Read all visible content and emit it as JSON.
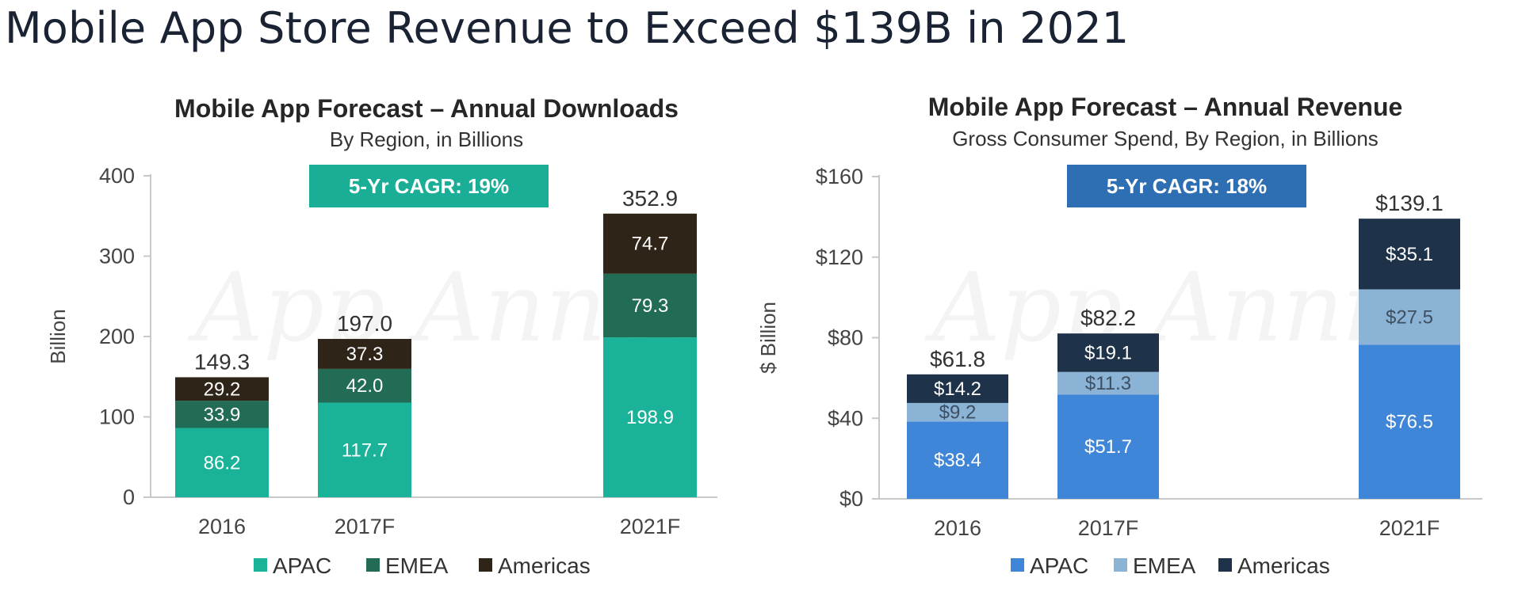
{
  "page": {
    "title": "Mobile App Store Revenue to Exceed $139B in 2021"
  },
  "watermark": "App Annie",
  "chart_data": [
    {
      "type": "bar",
      "stacked": true,
      "title": "Mobile App Forecast – Annual Downloads",
      "subtitle": "By Region, in Billions",
      "badge": "5-Yr CAGR: 19%",
      "badge_color": "#1aae97",
      "ylabel": "Billion",
      "ylim": [
        0,
        400
      ],
      "yticks": [
        0,
        100,
        200,
        300,
        400
      ],
      "ytick_labels": [
        "0",
        "100",
        "200",
        "300",
        "400"
      ],
      "categories": [
        "2016",
        "2017F",
        "2021F"
      ],
      "x_positions": [
        0,
        1,
        3
      ],
      "series": [
        {
          "name": "APAC",
          "color": "#1ab39a",
          "label_color": "#ffffff",
          "values": [
            86.2,
            117.7,
            198.9
          ],
          "labels": [
            "86.2",
            "117.7",
            "198.9"
          ]
        },
        {
          "name": "EMEA",
          "color": "#226b55",
          "label_color": "#ffffff",
          "values": [
            33.9,
            42.0,
            79.3
          ],
          "labels": [
            "33.9",
            "42.0",
            "79.3"
          ]
        },
        {
          "name": "Americas",
          "color": "#2e2418",
          "label_color": "#ffffff",
          "values": [
            29.2,
            37.3,
            74.7
          ],
          "labels": [
            "29.2",
            "37.3",
            "74.7"
          ]
        }
      ],
      "totals": [
        "149.3",
        "197.0",
        "352.9"
      ],
      "grid": false,
      "legend_position": "bottom"
    },
    {
      "type": "bar",
      "stacked": true,
      "title": "Mobile App Forecast – Annual Revenue",
      "subtitle": "Gross Consumer Spend, By Region, in Billions",
      "badge": "5-Yr CAGR: 18%",
      "badge_color": "#2e6fb3",
      "ylabel": "$ Billion",
      "ylim": [
        0,
        160
      ],
      "yticks": [
        0,
        40,
        80,
        120,
        160
      ],
      "ytick_labels": [
        "$0",
        "$40",
        "$80",
        "$120",
        "$160"
      ],
      "categories": [
        "2016",
        "2017F",
        "2021F"
      ],
      "x_positions": [
        0,
        1,
        3
      ],
      "series": [
        {
          "name": "APAC",
          "color": "#3f86d8",
          "label_color": "#ffffff",
          "values": [
            38.4,
            51.7,
            76.5
          ],
          "labels": [
            "$38.4",
            "$51.7",
            "$76.5"
          ]
        },
        {
          "name": "EMEA",
          "color": "#8bb3d6",
          "label_color": "#3d4f60",
          "values": [
            9.2,
            11.3,
            27.5
          ],
          "labels": [
            "$9.2",
            "$11.3",
            "$27.5"
          ]
        },
        {
          "name": "Americas",
          "color": "#1e3349",
          "label_color": "#ffffff",
          "values": [
            14.2,
            19.1,
            35.1
          ],
          "labels": [
            "$14.2",
            "$19.1",
            "$35.1"
          ]
        }
      ],
      "totals": [
        "$61.8",
        "$82.2",
        "$139.1"
      ],
      "grid": false,
      "legend_position": "bottom"
    }
  ]
}
